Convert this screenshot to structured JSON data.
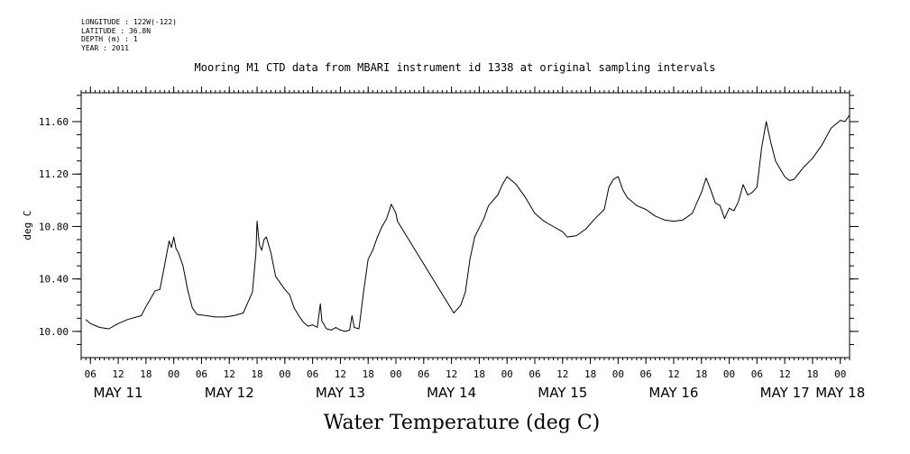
{
  "metadata": [
    {
      "label": "LONGITUDE",
      "value": "122W(-122)"
    },
    {
      "label": "LATITUDE",
      "value": "36.8N"
    },
    {
      "label": "DEPTH (m)",
      "value": "1"
    },
    {
      "label": "YEAR",
      "value": "2011"
    }
  ],
  "colors": {
    "line": "#000000",
    "background": "#ffffff"
  },
  "chart_data": {
    "type": "line",
    "title": "Mooring M1 CTD data from MBARI instrument id 1338 at original sampling intervals",
    "xlabel": "Water Temperature (deg C)",
    "ylabel": "deg C",
    "xlim": [
      "2011-05-11T04:00",
      "2011-05-18T02:00"
    ],
    "ylim": [
      9.8,
      11.82
    ],
    "grid": false,
    "yticks": [
      10.0,
      10.4,
      10.8,
      11.2,
      11.6
    ],
    "ytick_labels": [
      "10.00",
      "10.40",
      "10.80",
      "11.20",
      "11.60"
    ],
    "x_hour_ticks": [
      {
        "t": "2011-05-11T06:00",
        "label": "06"
      },
      {
        "t": "2011-05-11T12:00",
        "label": "12"
      },
      {
        "t": "2011-05-11T18:00",
        "label": "18"
      },
      {
        "t": "2011-05-12T00:00",
        "label": "00"
      },
      {
        "t": "2011-05-12T06:00",
        "label": "06"
      },
      {
        "t": "2011-05-12T12:00",
        "label": "12"
      },
      {
        "t": "2011-05-12T18:00",
        "label": "18"
      },
      {
        "t": "2011-05-13T00:00",
        "label": "00"
      },
      {
        "t": "2011-05-13T06:00",
        "label": "06"
      },
      {
        "t": "2011-05-13T12:00",
        "label": "12"
      },
      {
        "t": "2011-05-13T18:00",
        "label": "18"
      },
      {
        "t": "2011-05-14T00:00",
        "label": "00"
      },
      {
        "t": "2011-05-14T06:00",
        "label": "06"
      },
      {
        "t": "2011-05-14T12:00",
        "label": "12"
      },
      {
        "t": "2011-05-14T18:00",
        "label": "18"
      },
      {
        "t": "2011-05-15T00:00",
        "label": "00"
      },
      {
        "t": "2011-05-15T06:00",
        "label": "06"
      },
      {
        "t": "2011-05-15T12:00",
        "label": "12"
      },
      {
        "t": "2011-05-15T18:00",
        "label": "18"
      },
      {
        "t": "2011-05-16T00:00",
        "label": "00"
      },
      {
        "t": "2011-05-16T06:00",
        "label": "06"
      },
      {
        "t": "2011-05-16T12:00",
        "label": "12"
      },
      {
        "t": "2011-05-16T18:00",
        "label": "18"
      },
      {
        "t": "2011-05-17T00:00",
        "label": "00"
      },
      {
        "t": "2011-05-17T06:00",
        "label": "06"
      },
      {
        "t": "2011-05-17T12:00",
        "label": "12"
      },
      {
        "t": "2011-05-17T18:00",
        "label": "18"
      },
      {
        "t": "2011-05-18T00:00",
        "label": "00"
      }
    ],
    "x_day_labels": [
      {
        "t": "2011-05-11T12:00",
        "label": "MAY 11"
      },
      {
        "t": "2011-05-12T12:00",
        "label": "MAY 12"
      },
      {
        "t": "2011-05-13T12:00",
        "label": "MAY 13"
      },
      {
        "t": "2011-05-14T12:00",
        "label": "MAY 14"
      },
      {
        "t": "2011-05-15T12:00",
        "label": "MAY 15"
      },
      {
        "t": "2011-05-16T12:00",
        "label": "MAY 16"
      },
      {
        "t": "2011-05-17T12:00",
        "label": "MAY 17"
      },
      {
        "t": "2011-05-18T00:00",
        "label": "MAY 18"
      }
    ],
    "series": [
      {
        "values": [
          [
            "2011-05-11T05:00",
            10.09
          ],
          [
            "2011-05-11T06:00",
            10.06
          ],
          [
            "2011-05-11T08:00",
            10.03
          ],
          [
            "2011-05-11T10:00",
            10.02
          ],
          [
            "2011-05-11T12:00",
            10.06
          ],
          [
            "2011-05-11T14:00",
            10.09
          ],
          [
            "2011-05-11T17:00",
            10.12
          ],
          [
            "2011-05-11T18:00",
            10.19
          ],
          [
            "2011-05-11T20:00",
            10.31
          ],
          [
            "2011-05-11T21:00",
            10.32
          ],
          [
            "2011-05-11T22:00",
            10.5
          ],
          [
            "2011-05-11T23:00",
            10.69
          ],
          [
            "2011-05-11T23:30",
            10.64
          ],
          [
            "2011-05-12T00:00",
            10.72
          ],
          [
            "2011-05-12T00:30",
            10.63
          ],
          [
            "2011-05-12T01:00",
            10.6
          ],
          [
            "2011-05-12T02:00",
            10.5
          ],
          [
            "2011-05-12T03:00",
            10.32
          ],
          [
            "2011-05-12T04:00",
            10.18
          ],
          [
            "2011-05-12T05:00",
            10.13
          ],
          [
            "2011-05-12T07:00",
            10.12
          ],
          [
            "2011-05-12T09:00",
            10.11
          ],
          [
            "2011-05-12T11:00",
            10.11
          ],
          [
            "2011-05-12T13:00",
            10.12
          ],
          [
            "2011-05-12T15:00",
            10.14
          ],
          [
            "2011-05-12T16:00",
            10.22
          ],
          [
            "2011-05-12T17:00",
            10.3
          ],
          [
            "2011-05-12T17:45",
            10.6
          ],
          [
            "2011-05-12T18:00",
            10.84
          ],
          [
            "2011-05-12T18:30",
            10.66
          ],
          [
            "2011-05-12T19:00",
            10.62
          ],
          [
            "2011-05-12T19:30",
            10.7
          ],
          [
            "2011-05-12T20:00",
            10.72
          ],
          [
            "2011-05-12T21:00",
            10.6
          ],
          [
            "2011-05-12T22:00",
            10.42
          ],
          [
            "2011-05-13T00:00",
            10.32
          ],
          [
            "2011-05-13T01:00",
            10.28
          ],
          [
            "2011-05-13T02:00",
            10.18
          ],
          [
            "2011-05-13T03:00",
            10.12
          ],
          [
            "2011-05-13T04:00",
            10.07
          ],
          [
            "2011-05-13T05:00",
            10.04
          ],
          [
            "2011-05-13T06:00",
            10.05
          ],
          [
            "2011-05-13T07:00",
            10.03
          ],
          [
            "2011-05-13T07:40",
            10.21
          ],
          [
            "2011-05-13T08:00",
            10.08
          ],
          [
            "2011-05-13T09:00",
            10.02
          ],
          [
            "2011-05-13T10:00",
            10.01
          ],
          [
            "2011-05-13T11:00",
            10.03
          ],
          [
            "2011-05-13T12:00",
            10.01
          ],
          [
            "2011-05-13T13:00",
            10.0
          ],
          [
            "2011-05-13T14:00",
            10.01
          ],
          [
            "2011-05-13T14:30",
            10.12
          ],
          [
            "2011-05-13T15:00",
            10.03
          ],
          [
            "2011-05-13T16:00",
            10.02
          ],
          [
            "2011-05-13T17:00",
            10.3
          ],
          [
            "2011-05-13T18:00",
            10.55
          ],
          [
            "2011-05-13T19:00",
            10.62
          ],
          [
            "2011-05-13T20:00",
            10.72
          ],
          [
            "2011-05-13T21:00",
            10.8
          ],
          [
            "2011-05-13T22:00",
            10.86
          ],
          [
            "2011-05-13T23:00",
            10.97
          ],
          [
            "2011-05-14T00:00",
            10.9
          ],
          [
            "2011-05-14T00:20",
            10.84
          ],
          [
            "2011-05-14T12:30",
            10.14
          ],
          [
            "2011-05-14T14:00",
            10.2
          ],
          [
            "2011-05-14T15:00",
            10.3
          ],
          [
            "2011-05-14T16:00",
            10.55
          ],
          [
            "2011-05-14T17:00",
            10.72
          ],
          [
            "2011-05-14T19:00",
            10.86
          ],
          [
            "2011-05-14T20:00",
            10.96
          ],
          [
            "2011-05-14T22:00",
            11.04
          ],
          [
            "2011-05-14T23:00",
            11.12
          ],
          [
            "2011-05-15T00:00",
            11.18
          ],
          [
            "2011-05-15T02:00",
            11.12
          ],
          [
            "2011-05-15T04:00",
            11.02
          ],
          [
            "2011-05-15T06:00",
            10.9
          ],
          [
            "2011-05-15T08:00",
            10.84
          ],
          [
            "2011-05-15T10:00",
            10.8
          ],
          [
            "2011-05-15T12:00",
            10.76
          ],
          [
            "2011-05-15T13:00",
            10.72
          ],
          [
            "2011-05-15T15:00",
            10.73
          ],
          [
            "2011-05-15T17:00",
            10.78
          ],
          [
            "2011-05-15T19:00",
            10.86
          ],
          [
            "2011-05-15T21:00",
            10.93
          ],
          [
            "2011-05-15T22:00",
            11.1
          ],
          [
            "2011-05-15T23:00",
            11.16
          ],
          [
            "2011-05-16T00:00",
            11.18
          ],
          [
            "2011-05-16T01:00",
            11.08
          ],
          [
            "2011-05-16T02:00",
            11.02
          ],
          [
            "2011-05-16T04:00",
            10.96
          ],
          [
            "2011-05-16T06:00",
            10.93
          ],
          [
            "2011-05-16T08:00",
            10.88
          ],
          [
            "2011-05-16T10:00",
            10.85
          ],
          [
            "2011-05-16T12:00",
            10.84
          ],
          [
            "2011-05-16T14:00",
            10.85
          ],
          [
            "2011-05-16T16:00",
            10.9
          ],
          [
            "2011-05-16T17:00",
            10.98
          ],
          [
            "2011-05-16T18:00",
            11.06
          ],
          [
            "2011-05-16T19:00",
            11.17
          ],
          [
            "2011-05-16T20:00",
            11.08
          ],
          [
            "2011-05-16T21:00",
            10.98
          ],
          [
            "2011-05-16T22:00",
            10.96
          ],
          [
            "2011-05-16T23:00",
            10.86
          ],
          [
            "2011-05-17T00:00",
            10.94
          ],
          [
            "2011-05-17T01:00",
            10.92
          ],
          [
            "2011-05-17T02:00",
            10.99
          ],
          [
            "2011-05-17T03:00",
            11.12
          ],
          [
            "2011-05-17T04:00",
            11.04
          ],
          [
            "2011-05-17T05:00",
            11.06
          ],
          [
            "2011-05-17T06:00",
            11.1
          ],
          [
            "2011-05-17T07:00",
            11.4
          ],
          [
            "2011-05-17T08:00",
            11.6
          ],
          [
            "2011-05-17T09:00",
            11.44
          ],
          [
            "2011-05-17T10:00",
            11.3
          ],
          [
            "2011-05-17T12:00",
            11.18
          ],
          [
            "2011-05-17T13:00",
            11.15
          ],
          [
            "2011-05-17T14:00",
            11.16
          ],
          [
            "2011-05-17T16:00",
            11.25
          ],
          [
            "2011-05-17T18:00",
            11.32
          ],
          [
            "2011-05-17T20:00",
            11.42
          ],
          [
            "2011-05-17T22:00",
            11.55
          ],
          [
            "2011-05-18T00:00",
            11.61
          ],
          [
            "2011-05-18T01:00",
            11.6
          ],
          [
            "2011-05-18T02:00",
            11.65
          ]
        ]
      }
    ]
  }
}
